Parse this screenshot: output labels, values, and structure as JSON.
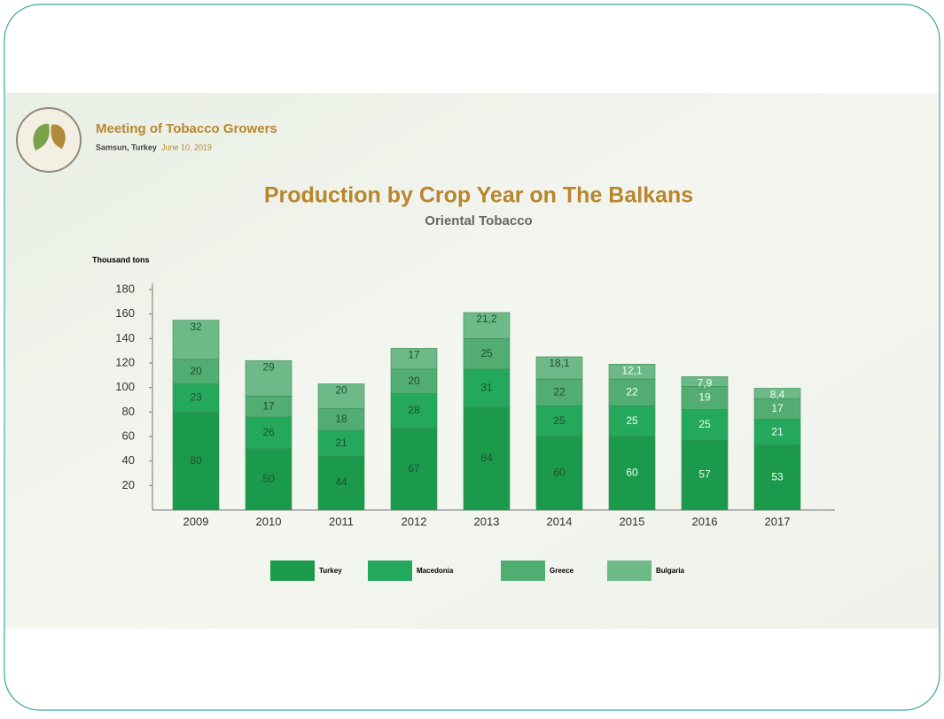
{
  "header": {
    "event": "Meeting of Tobacco Growers",
    "place": "Samsun, Turkey",
    "date": "June 10, 2019"
  },
  "chart_data": {
    "type": "stacked-bar",
    "title": "Production by Crop Year on The Balkans",
    "subtitle": "Oriental Tobacco",
    "y_label": "Thousand tons",
    "categories": [
      "2009",
      "2010",
      "2011",
      "2012",
      "2013",
      "2014",
      "2015",
      "2016",
      "2017"
    ],
    "series": [
      {
        "name": "Turkey",
        "color": "#1c9a4c",
        "values": [
          80,
          50,
          44,
          67,
          84,
          60,
          60,
          57,
          53
        ]
      },
      {
        "name": "Macedonia",
        "color": "#24a95c",
        "values": [
          23,
          26,
          21,
          28,
          31,
          25,
          25,
          25,
          21
        ]
      },
      {
        "name": "Greece",
        "color": "#52ad72",
        "values": [
          20,
          17,
          18,
          20,
          25,
          22,
          22,
          19,
          17
        ]
      },
      {
        "name": "Bulgaria",
        "color": "#6dba88",
        "values": [
          32,
          29,
          20,
          17,
          21.2,
          18.1,
          12.1,
          7.9,
          8.4
        ],
        "value_labels": [
          "32",
          "29",
          "20",
          "17",
          "21,2",
          "18,1",
          "12,1",
          "7,9",
          "8,4"
        ]
      }
    ],
    "ylim": [
      0,
      180
    ],
    "yticks": [
      20,
      40,
      60,
      80,
      100,
      120,
      140,
      160,
      180
    ]
  }
}
